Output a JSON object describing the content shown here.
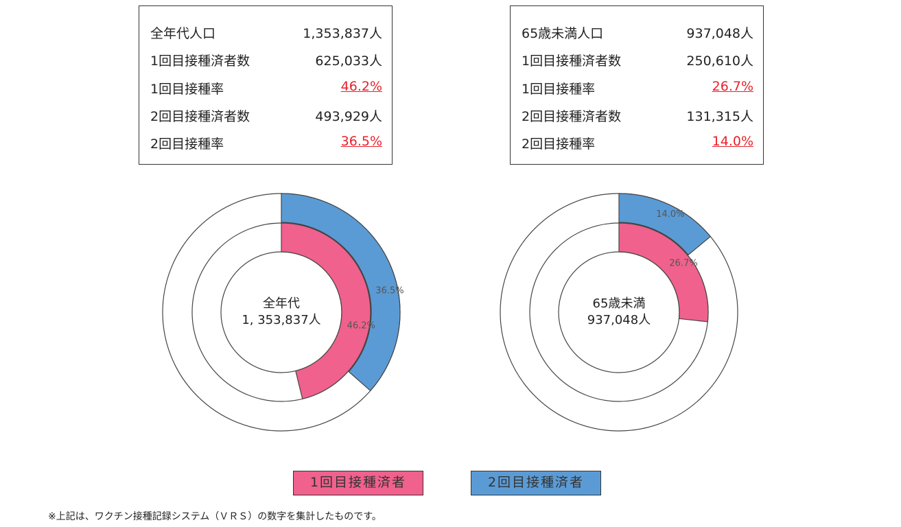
{
  "colors": {
    "dose1": "#f0618d",
    "dose2": "#5b9bd5",
    "rate_text": "#e8212a",
    "ring_outline": "#444444"
  },
  "summary_tables": [
    {
      "rows": [
        {
          "label": "全年代人口",
          "value": "1,353,837人"
        },
        {
          "label": "1回目接種済者数",
          "value": "625,033人"
        },
        {
          "label": "1回目接種率",
          "value": "46.2%"
        },
        {
          "label": "2回目接種済者数",
          "value": "493,929人"
        },
        {
          "label": "2回目接種率",
          "value": "36.5%"
        }
      ]
    },
    {
      "rows": [
        {
          "label": "65歳未満人口",
          "value": "937,048人"
        },
        {
          "label": "1回目接種済者数",
          "value": "250,610人"
        },
        {
          "label": "1回目接種率",
          "value": "26.7%"
        },
        {
          "label": "2回目接種済者数",
          "value": "131,315人"
        },
        {
          "label": "2回目接種率",
          "value": "14.0%"
        }
      ]
    }
  ],
  "chart_data": [
    {
      "type": "pie",
      "center_label": [
        "全年代",
        "1, 353,837人"
      ],
      "series": [
        {
          "name": "1回目接種済者",
          "ring": "inner",
          "value": 46.2,
          "label": "46.2%"
        },
        {
          "name": "2回目接種済者",
          "ring": "outer",
          "value": 36.5,
          "label": "36.5%"
        }
      ]
    },
    {
      "type": "pie",
      "center_label": [
        "65歳未満",
        "937,048人"
      ],
      "series": [
        {
          "name": "1回目接種済者",
          "ring": "inner",
          "value": 26.7,
          "label": "26.7%"
        },
        {
          "name": "2回目接種済者",
          "ring": "outer",
          "value": 14.0,
          "label": "14.0%"
        }
      ]
    }
  ],
  "legend": {
    "first_dose": "1回目接種済者",
    "second_dose": "2回目接種済者"
  },
  "footnote": "※上記は、ワクチン接種記録システム（ＶＲＳ）の数字を集計したものです。"
}
